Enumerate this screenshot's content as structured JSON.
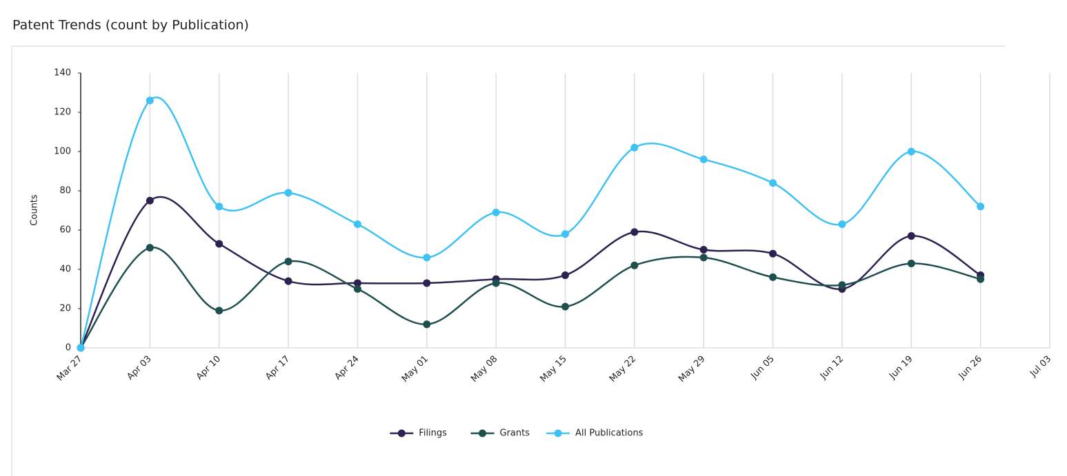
{
  "chart_data": {
    "type": "line",
    "title": "Patent Trends (count by Publication)",
    "y_label": "Counts",
    "categories": [
      "Mar 27",
      "Apr 03",
      "Apr 10",
      "Apr 17",
      "Apr 24",
      "May 01",
      "May 08",
      "May 15",
      "May 22",
      "May 29",
      "Jun 05",
      "Jun 12",
      "Jun 19",
      "Jun 26",
      "Jul 03"
    ],
    "series": [
      {
        "name": "Filings",
        "color": "#2d2150",
        "values": [
          0,
          75,
          53,
          34,
          33,
          33,
          35,
          37,
          59,
          50,
          48,
          30,
          57,
          37,
          null
        ]
      },
      {
        "name": "Grants",
        "color": "#1f4e4f",
        "values": [
          0,
          51,
          19,
          44,
          30,
          12,
          33,
          21,
          42,
          46,
          36,
          32,
          43,
          35,
          null
        ]
      },
      {
        "name": "All Publications",
        "color": "#3ec1f5",
        "values": [
          0,
          126,
          72,
          79,
          63,
          46,
          69,
          58,
          102,
          96,
          84,
          63,
          100,
          72,
          null
        ]
      }
    ],
    "ylim": [
      0,
      140
    ],
    "yticks": [
      0,
      20,
      40,
      60,
      80,
      100,
      120,
      140
    ],
    "grid": "x",
    "smooth": true,
    "legend_position": "bottom"
  }
}
